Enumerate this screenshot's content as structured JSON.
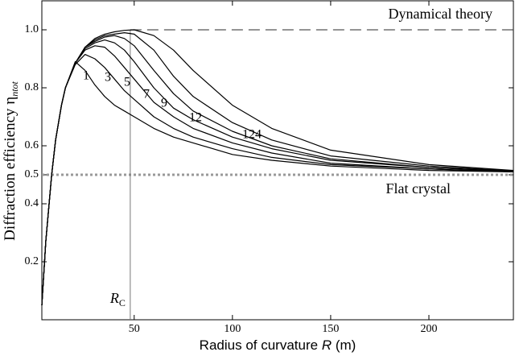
{
  "chart_data": {
    "type": "line",
    "xlabel": [
      "Radius of curvature ",
      "R",
      " (m)"
    ],
    "ylabel": [
      "Diffraction efficiency η",
      "ntot"
    ],
    "xlim": [
      3,
      243
    ],
    "ylim": [
      0,
      1.1
    ],
    "xticks": [
      50,
      100,
      150,
      200
    ],
    "yticks": [
      0.2,
      0.4,
      0.5,
      0.6,
      0.8,
      {
        "value": 1,
        "label": "1.0"
      }
    ],
    "x": [
      3,
      5,
      8,
      10,
      13,
      15,
      20,
      25,
      30,
      35,
      40,
      45,
      50,
      60,
      70,
      80,
      100,
      120,
      150,
      200,
      243
    ],
    "series": [
      {
        "name": "1",
        "color": "#000000",
        "values": [
          0.05,
          0.27,
          0.5,
          0.62,
          0.74,
          0.8,
          0.89,
          0.86,
          0.81,
          0.77,
          0.74,
          0.72,
          0.7,
          0.66,
          0.63,
          0.61,
          0.57,
          0.55,
          0.53,
          0.515,
          0.51
        ]
      },
      {
        "name": "3",
        "color": "#000000",
        "values": [
          0.05,
          0.27,
          0.5,
          0.62,
          0.74,
          0.8,
          0.88,
          0.915,
          0.9,
          0.87,
          0.83,
          0.79,
          0.76,
          0.7,
          0.66,
          0.63,
          0.59,
          0.56,
          0.535,
          0.52,
          0.51
        ]
      },
      {
        "name": "5",
        "color": "#000000",
        "values": [
          0.05,
          0.27,
          0.5,
          0.62,
          0.74,
          0.8,
          0.885,
          0.93,
          0.945,
          0.94,
          0.91,
          0.87,
          0.83,
          0.75,
          0.7,
          0.66,
          0.61,
          0.575,
          0.54,
          0.52,
          0.51
        ]
      },
      {
        "name": "7",
        "color": "#000000",
        "values": [
          0.05,
          0.27,
          0.5,
          0.62,
          0.74,
          0.8,
          0.885,
          0.935,
          0.955,
          0.965,
          0.955,
          0.93,
          0.89,
          0.8,
          0.73,
          0.69,
          0.63,
          0.59,
          0.55,
          0.525,
          0.512
        ]
      },
      {
        "name": "9",
        "color": "#000000",
        "values": [
          0.05,
          0.27,
          0.5,
          0.62,
          0.74,
          0.8,
          0.885,
          0.94,
          0.96,
          0.975,
          0.98,
          0.97,
          0.945,
          0.86,
          0.78,
          0.72,
          0.65,
          0.6,
          0.555,
          0.525,
          0.512
        ]
      },
      {
        "name": "12",
        "color": "#000000",
        "values": [
          0.05,
          0.27,
          0.5,
          0.62,
          0.74,
          0.8,
          0.885,
          0.94,
          0.965,
          0.98,
          0.985,
          0.99,
          0.985,
          0.93,
          0.84,
          0.77,
          0.68,
          0.62,
          0.565,
          0.53,
          0.513
        ]
      },
      {
        "name": "124",
        "color": "#000000",
        "values": [
          0.05,
          0.27,
          0.5,
          0.62,
          0.74,
          0.8,
          0.885,
          0.94,
          0.97,
          0.985,
          0.993,
          0.998,
          1.0,
          0.98,
          0.93,
          0.86,
          0.74,
          0.66,
          0.585,
          0.535,
          0.515
        ]
      }
    ],
    "reference_lines": {
      "dynamical": {
        "label": "Dynamical theory",
        "value": 1,
        "color": "#555555"
      },
      "flat": {
        "label": "Flat crystal",
        "value": 0.5,
        "color": "#999999"
      },
      "critical": {
        "label": "R",
        "label_sub": "C",
        "value": 48,
        "color": "#777777"
      }
    }
  }
}
